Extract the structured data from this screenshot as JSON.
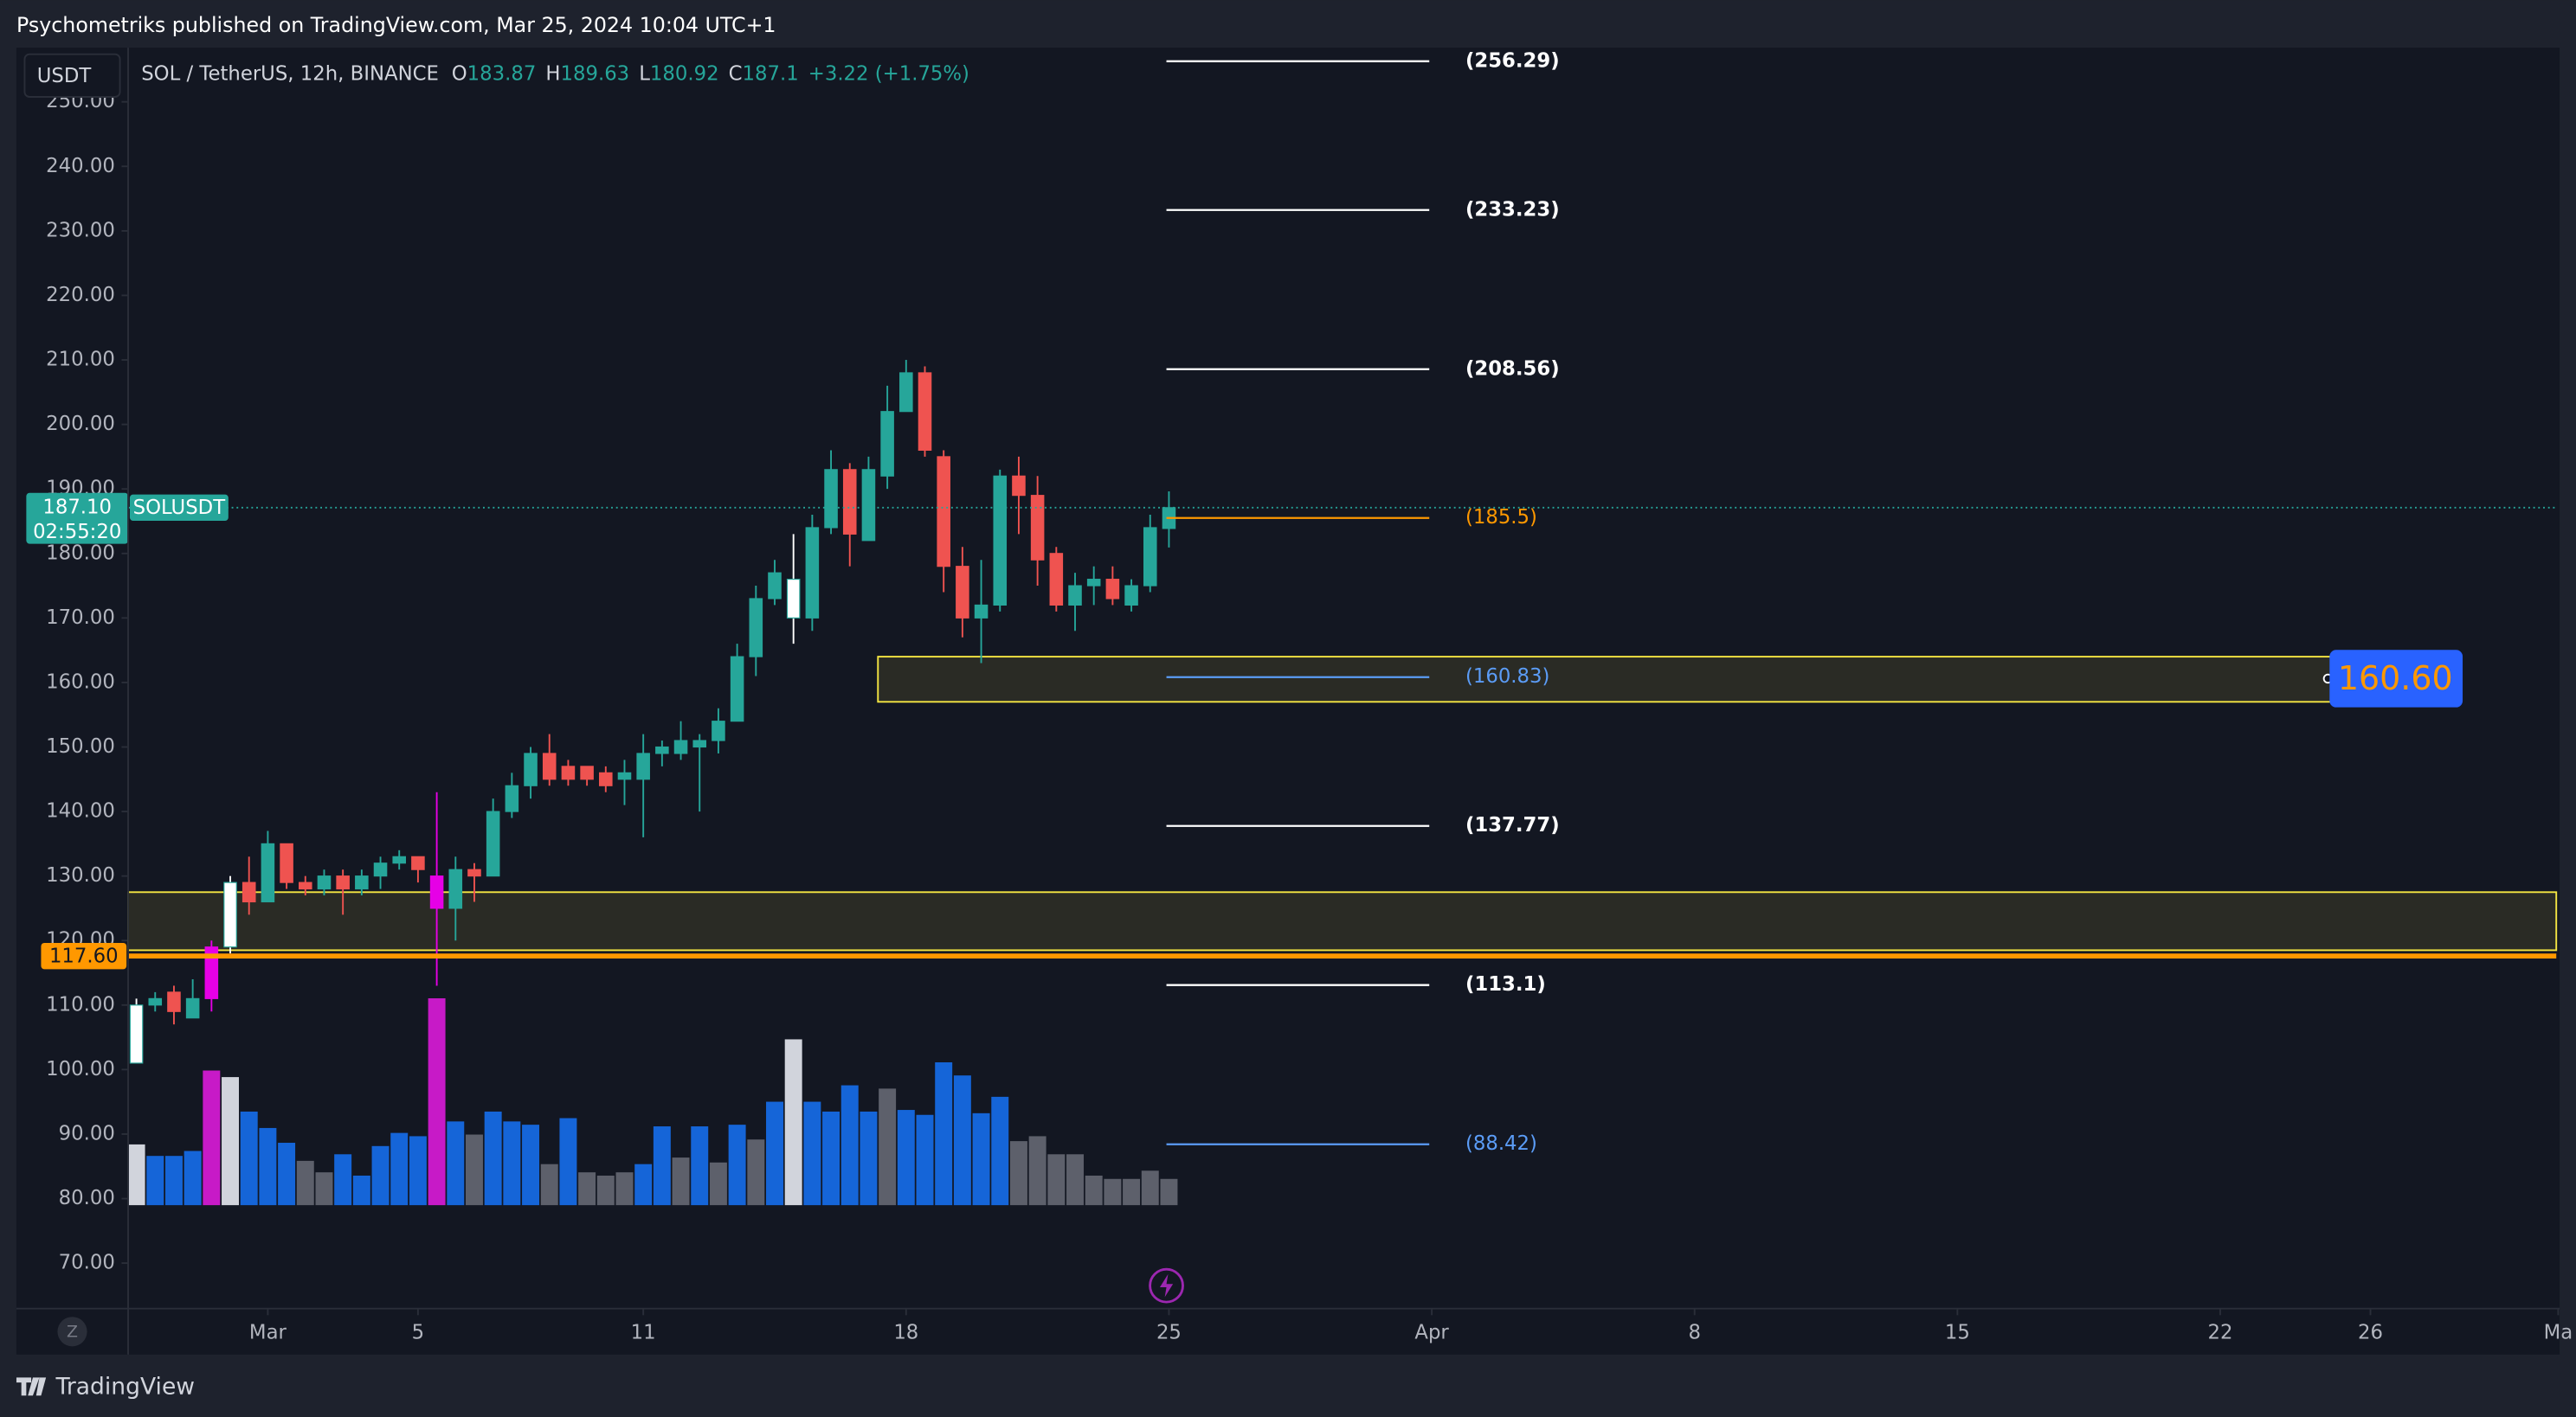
{
  "header": {
    "published": "Psychometriks published on TradingView.com, Mar 25, 2024 10:04 UTC+1",
    "currency_button": "USDT",
    "zoom_button": "Z",
    "footer_brand": "TradingView"
  },
  "chart_data": {
    "type": "candlestick",
    "symbol": "SOL / TetherUS, 12h, BINANCE",
    "legend": {
      "o_label": "O",
      "o": 183.87,
      "h_label": "H",
      "h": 189.63,
      "l_label": "L",
      "l": 180.92,
      "c_label": "C",
      "c": 187.1,
      "change": "+3.22 (+1.75%)"
    },
    "open": [
      101,
      110,
      112,
      108,
      111,
      119,
      129,
      126,
      135,
      129,
      128,
      130,
      128,
      130,
      132,
      133,
      130,
      125,
      131,
      130,
      140,
      144,
      149,
      147,
      147,
      146,
      145,
      145,
      149,
      149,
      150,
      151,
      154,
      164,
      173,
      170,
      170,
      184,
      193,
      182,
      192,
      202,
      208,
      195,
      178,
      170,
      172,
      192,
      189,
      180,
      172,
      175,
      176,
      172,
      175,
      183.87
    ],
    "high": [
      111,
      112,
      113,
      114,
      120,
      130,
      133,
      137,
      135,
      130,
      131,
      131,
      131,
      133,
      134,
      133,
      143,
      133,
      132,
      142,
      146,
      150,
      152,
      148,
      147,
      147,
      148,
      152,
      151,
      154,
      152,
      156,
      166,
      175,
      179,
      183,
      186,
      196,
      194,
      195,
      206,
      210,
      209,
      196,
      181,
      179,
      193,
      195,
      192,
      181,
      177,
      178,
      178,
      176,
      186,
      189.63
    ],
    "low": [
      101,
      109,
      107,
      108,
      109,
      118,
      124,
      126,
      128,
      127,
      127,
      124,
      127,
      128,
      131,
      129,
      113,
      120,
      126,
      130,
      139,
      142,
      144,
      144,
      144,
      143,
      141,
      136,
      147,
      148,
      140,
      149,
      154,
      161,
      172,
      166,
      168,
      183,
      178,
      182,
      190,
      202,
      195,
      174,
      167,
      163,
      171,
      183,
      175,
      171,
      168,
      172,
      172,
      171,
      174,
      180.92
    ],
    "close": [
      110,
      111,
      109,
      111,
      119,
      129,
      126,
      135,
      129,
      128,
      130,
      128,
      130,
      132,
      133,
      131,
      125,
      131,
      130,
      140,
      144,
      149,
      145,
      145,
      145,
      144,
      146,
      149,
      150,
      151,
      151,
      154,
      164,
      173,
      177,
      176,
      184,
      193,
      183,
      193,
      202,
      208,
      196,
      178,
      170,
      172,
      192,
      189,
      179,
      172,
      175,
      176,
      173,
      175,
      184,
      187.1
    ],
    "colors": [
      "#ffffff",
      "#26a69a",
      "#ef5350",
      "#26a69a",
      "#e600e6",
      "#ffffff",
      "#ef5350",
      "#26a69a",
      "#ef5350",
      "#ef5350",
      "#26a69a",
      "#ef5350",
      "#26a69a",
      "#26a69a",
      "#26a69a",
      "#ef5350",
      "#e600e6",
      "#26a69a",
      "#ef5350",
      "#26a69a",
      "#26a69a",
      "#26a69a",
      "#ef5350",
      "#ef5350",
      "#ef5350",
      "#ef5350",
      "#26a69a",
      "#26a69a",
      "#26a69a",
      "#26a69a",
      "#26a69a",
      "#26a69a",
      "#26a69a",
      "#26a69a",
      "#26a69a",
      "#ffffff",
      "#26a69a",
      "#26a69a",
      "#ef5350",
      "#26a69a",
      "#26a69a",
      "#26a69a",
      "#ef5350",
      "#ef5350",
      "#ef5350",
      "#26a69a",
      "#26a69a",
      "#ef5350",
      "#ef5350",
      "#ef5350",
      "#26a69a",
      "#26a69a",
      "#ef5350",
      "#26a69a",
      "#26a69a",
      "#26a69a"
    ],
    "volume": [
      37,
      30,
      30,
      33,
      82,
      78,
      57,
      47,
      38,
      27,
      20,
      31,
      18,
      36,
      44,
      42,
      126,
      51,
      43,
      57,
      51,
      49,
      25,
      53,
      20,
      18,
      20,
      25,
      48,
      29,
      48,
      26,
      49,
      40,
      63,
      101,
      63,
      57,
      73,
      57,
      71,
      58,
      55,
      87,
      79,
      56,
      66,
      39,
      42,
      31,
      31,
      18,
      16,
      16,
      21,
      16
    ],
    "volume_colors": [
      "#d1d4dc",
      "#1565d8",
      "#1565d8",
      "#1565d8",
      "#c71ac7",
      "#d1d4dc",
      "#1565d8",
      "#1565d8",
      "#1565d8",
      "#5d606b",
      "#5d606b",
      "#1565d8",
      "#1565d8",
      "#1565d8",
      "#1565d8",
      "#1565d8",
      "#c71ac7",
      "#1565d8",
      "#5d606b",
      "#1565d8",
      "#1565d8",
      "#1565d8",
      "#5d606b",
      "#1565d8",
      "#5d606b",
      "#5d606b",
      "#5d606b",
      "#1565d8",
      "#1565d8",
      "#5d606b",
      "#1565d8",
      "#5d606b",
      "#1565d8",
      "#5d606b",
      "#1565d8",
      "#d1d4dc",
      "#1565d8",
      "#1565d8",
      "#1565d8",
      "#1565d8",
      "#5d606b",
      "#1565d8",
      "#1565d8",
      "#1565d8",
      "#1565d8",
      "#1565d8",
      "#1565d8",
      "#5d606b",
      "#5d606b",
      "#5d606b",
      "#5d606b",
      "#5d606b",
      "#5d606b",
      "#5d606b",
      "#5d606b",
      "#5d606b"
    ],
    "xlim": [
      -0.44,
      128.9
    ],
    "xticks": [
      {
        "value": 7,
        "label": "Mar"
      },
      {
        "value": 15,
        "label": "5"
      },
      {
        "value": 27,
        "label": "11"
      },
      {
        "value": 41,
        "label": "18"
      },
      {
        "value": 55,
        "label": "25"
      },
      {
        "value": 69,
        "label": "Apr"
      },
      {
        "value": 83,
        "label": "8"
      },
      {
        "value": 97,
        "label": "15"
      },
      {
        "value": 111,
        "label": "22"
      },
      {
        "value": 119,
        "label": "26"
      },
      {
        "value": 129,
        "label": "Ma"
      }
    ],
    "ylim": [
      62.95,
      258.4
    ],
    "yticks": [
      {
        "value": 70,
        "label": "70.00"
      },
      {
        "value": 80,
        "label": "80.00"
      },
      {
        "value": 90,
        "label": "90.00"
      },
      {
        "value": 100,
        "label": "100.00"
      },
      {
        "value": 110,
        "label": "110.00"
      },
      {
        "value": 120,
        "label": "120.00"
      },
      {
        "value": 130,
        "label": "130.00"
      },
      {
        "value": 140,
        "label": "140.00"
      },
      {
        "value": 150,
        "label": "150.00"
      },
      {
        "value": 160,
        "label": "160.00"
      },
      {
        "value": 170,
        "label": "170.00"
      },
      {
        "value": 180,
        "label": "180.00"
      },
      {
        "value": 190,
        "label": "190.00"
      },
      {
        "value": 200,
        "label": "200.00"
      },
      {
        "value": 210,
        "label": "210.00"
      },
      {
        "value": 220,
        "label": "220.00"
      },
      {
        "value": 230,
        "label": "230.00"
      },
      {
        "value": 240,
        "label": "240.00"
      },
      {
        "value": 250,
        "label": "250.00"
      }
    ],
    "levels": [
      {
        "value": 256.29,
        "label": "(256.29)",
        "color": "#ffffff"
      },
      {
        "value": 233.23,
        "label": "(233.23)",
        "color": "#ffffff"
      },
      {
        "value": 208.56,
        "label": "(208.56)",
        "color": "#ffffff"
      },
      {
        "value": 185.5,
        "label": "(185.5)",
        "color": "#ff9800"
      },
      {
        "value": 160.83,
        "label": "(160.83)",
        "color": "#5b9cf6"
      },
      {
        "value": 137.77,
        "label": "(137.77)",
        "color": "#ffffff"
      },
      {
        "value": 113.1,
        "label": "(113.1)",
        "color": "#ffffff"
      },
      {
        "value": 88.42,
        "label": "(88.42)",
        "color": "#5b9cf6"
      }
    ],
    "zones": [
      {
        "top": 164,
        "bottom": 157,
        "start": 39.5,
        "end": 117.4
      },
      {
        "top": 127.5,
        "bottom": 118.5,
        "start": -0.44,
        "end": 128.9
      }
    ],
    "alert": {
      "value": 160.6,
      "label": "160.60"
    },
    "support_line": {
      "value": 117.6,
      "label": "117.60"
    },
    "last_price": {
      "value": 187.1,
      "label": "187.10",
      "countdown": "02:55:20",
      "name": "SOLUSDT"
    }
  }
}
